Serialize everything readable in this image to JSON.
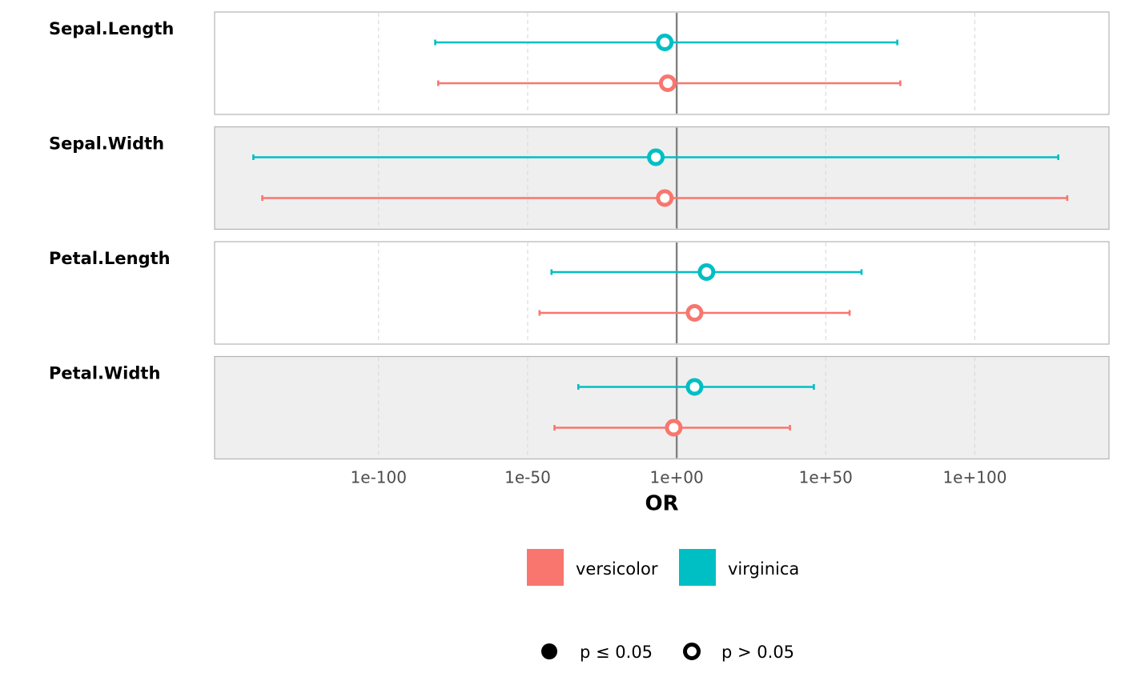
{
  "chart_data": {
    "type": "forest",
    "xlabel": "OR",
    "x_scale": "log10",
    "x_tick_labels": [
      "1e-100",
      "1e-50",
      "1e+00",
      "1e+50",
      "1e+100"
    ],
    "x_tick_exponents": [
      -100,
      -50,
      0,
      50,
      100
    ],
    "x_lim_exponents": [
      -155,
      145
    ],
    "reference_line_exponent": 0,
    "panels": [
      {
        "label": "Sepal.Length",
        "shaded": false,
        "rows": [
          {
            "series": "virginica",
            "or_exp": -4,
            "lo_exp": -81,
            "hi_exp": 74,
            "significant": false
          },
          {
            "series": "versicolor",
            "or_exp": -3,
            "lo_exp": -80,
            "hi_exp": 75,
            "significant": false
          }
        ]
      },
      {
        "label": "Sepal.Width",
        "shaded": true,
        "rows": [
          {
            "series": "virginica",
            "or_exp": -7,
            "lo_exp": -142,
            "hi_exp": 128,
            "significant": false
          },
          {
            "series": "versicolor",
            "or_exp": -4,
            "lo_exp": -139,
            "hi_exp": 131,
            "significant": false
          }
        ]
      },
      {
        "label": "Petal.Length",
        "shaded": false,
        "rows": [
          {
            "series": "virginica",
            "or_exp": 10,
            "lo_exp": -42,
            "hi_exp": 62,
            "significant": false
          },
          {
            "series": "versicolor",
            "or_exp": 6,
            "lo_exp": -46,
            "hi_exp": 58,
            "significant": false
          }
        ]
      },
      {
        "label": "Petal.Width",
        "shaded": true,
        "rows": [
          {
            "series": "virginica",
            "or_exp": 6,
            "lo_exp": -33,
            "hi_exp": 46,
            "significant": false
          },
          {
            "series": "versicolor",
            "or_exp": -1,
            "lo_exp": -41,
            "hi_exp": 38,
            "significant": false
          }
        ]
      }
    ],
    "series": [
      {
        "name": "versicolor",
        "color": "#F8766D"
      },
      {
        "name": "virginica",
        "color": "#00BFC4"
      }
    ],
    "legend_placement": "bottom",
    "significance_legend": [
      {
        "label": "p ≤ 0.05",
        "filled": true
      },
      {
        "label": "p > 0.05",
        "filled": false
      }
    ],
    "grid": "vertical dashed major",
    "colors": {
      "panel_shaded": "#EFEFEF",
      "panel_border": "#B3B3B3",
      "grid": "#D9D9D9",
      "reference_line": "#808080"
    }
  }
}
